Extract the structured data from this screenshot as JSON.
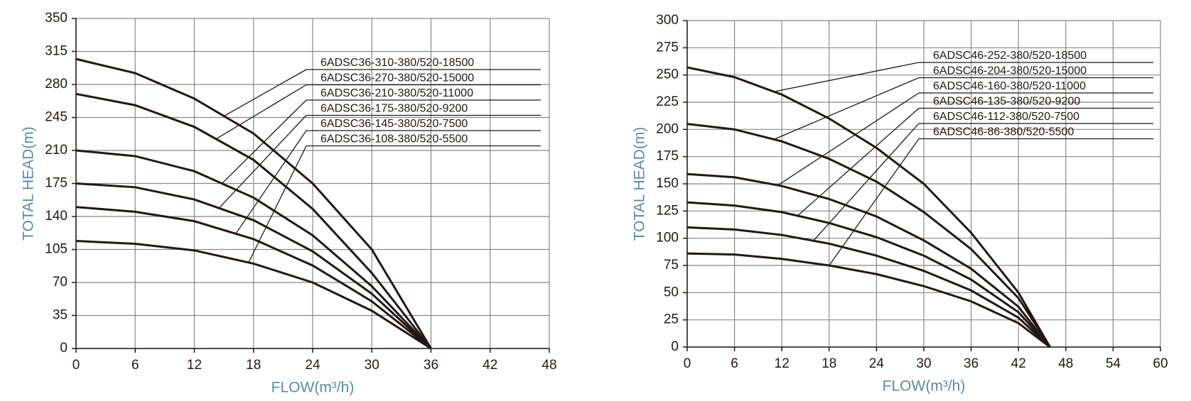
{
  "chart_data": [
    {
      "type": "line",
      "x_label": "FLOW(m³/h)",
      "y_label": "TOTAL HEAD(m)",
      "x": [
        0,
        6,
        12,
        18,
        24,
        30,
        36
      ],
      "series": [
        {
          "name": "6ADSC36-310-380/520-18500",
          "color": "#231815",
          "values": [
            307,
            292,
            265,
            228,
            175,
            105,
            0
          ]
        },
        {
          "name": "6ADSC36-270-380/520-15000",
          "color": "#231815",
          "values": [
            270,
            258,
            235,
            200,
            148,
            80,
            0
          ]
        },
        {
          "name": "6ADSC36-210-380/520-11000",
          "color": "#231815",
          "values": [
            210,
            204,
            188,
            160,
            120,
            66,
            0
          ]
        },
        {
          "name": "6ADSC36-175-380/520-9200",
          "color": "#231815",
          "values": [
            175,
            171,
            158,
            136,
            103,
            58,
            0
          ]
        },
        {
          "name": "6ADSC36-145-380/520-7500",
          "color": "#231815",
          "values": [
            150,
            145,
            135,
            116,
            88,
            50,
            0
          ]
        },
        {
          "name": "6ADSC36-108-380/520-5500",
          "color": "#231815",
          "values": [
            114,
            111,
            104,
            90,
            70,
            40,
            0
          ]
        }
      ],
      "xlim": [
        0,
        48
      ],
      "xticks": [
        0,
        6,
        12,
        18,
        24,
        30,
        36,
        42,
        48
      ],
      "ylim": [
        0,
        350
      ],
      "yticks": [
        0,
        35,
        70,
        105,
        140,
        175,
        210,
        245,
        280,
        315,
        350
      ],
      "grid": true
    },
    {
      "type": "line",
      "x_label": "FLOW(m³/h)",
      "y_label": "TOTAL HEAD(m)",
      "x": [
        0,
        6,
        12,
        18,
        24,
        30,
        36,
        42,
        46
      ],
      "series": [
        {
          "name": "6ADSC46-252-380/520-18500",
          "color": "#231815",
          "values": [
            257,
            248,
            232,
            210,
            183,
            150,
            105,
            50,
            0
          ]
        },
        {
          "name": "6ADSC46-204-380/520-15000",
          "color": "#231815",
          "values": [
            205,
            200,
            189,
            173,
            152,
            124,
            90,
            45,
            0
          ]
        },
        {
          "name": "6ADSC46-160-380/520-11000",
          "color": "#231815",
          "values": [
            159,
            156,
            148,
            136,
            120,
            98,
            72,
            37,
            0
          ]
        },
        {
          "name": "6ADSC46-135-380/520-9200",
          "color": "#231815",
          "values": [
            133,
            130,
            124,
            114,
            101,
            84,
            62,
            32,
            0
          ]
        },
        {
          "name": "6ADSC46-112-380/520-7500",
          "color": "#231815",
          "values": [
            110,
            108,
            103,
            95,
            84,
            70,
            52,
            27,
            0
          ]
        },
        {
          "name": "6ADSC46-86-380/520-5500",
          "color": "#231815",
          "values": [
            86,
            85,
            81,
            75,
            67,
            56,
            42,
            22,
            0
          ]
        }
      ],
      "xlim": [
        0,
        60
      ],
      "xticks": [
        0,
        6,
        12,
        18,
        24,
        30,
        36,
        42,
        48,
        54,
        60
      ],
      "ylim": [
        0,
        300
      ],
      "yticks": [
        0,
        25,
        50,
        75,
        100,
        125,
        150,
        175,
        200,
        225,
        250,
        275,
        300
      ],
      "grid": true
    }
  ]
}
